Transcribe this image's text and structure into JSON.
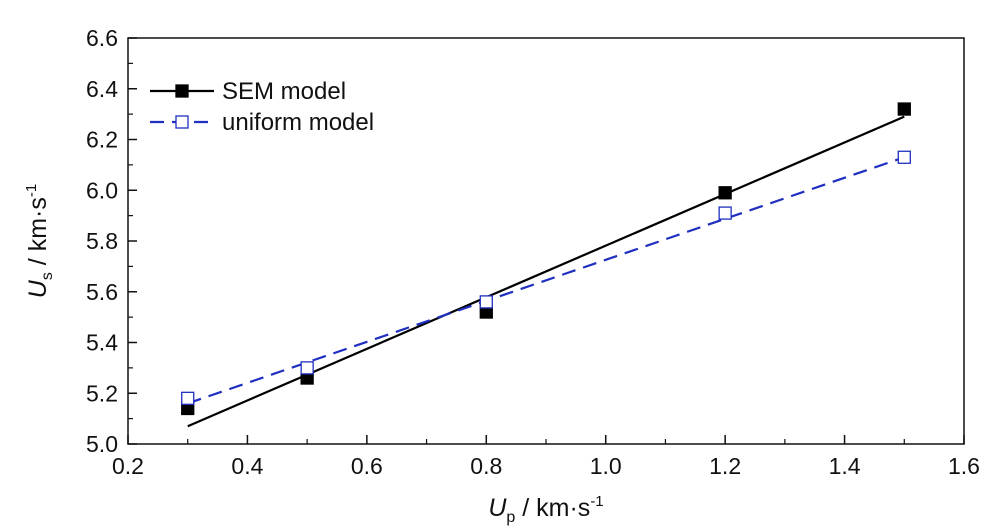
{
  "chart_data": {
    "type": "line",
    "xlabel": {
      "main": "U",
      "sub": "p",
      "unit": " / km·s",
      "sup": "-1"
    },
    "ylabel": {
      "main": "U",
      "sub": "s",
      "unit": " / km·s",
      "sup": "-1"
    },
    "xlim": [
      0.2,
      1.6
    ],
    "ylim": [
      5.0,
      6.6
    ],
    "xticks": [
      "0.2",
      "0.4",
      "0.6",
      "0.8",
      "1.0",
      "1.2",
      "1.4",
      "1.6"
    ],
    "yticks": [
      "5.0",
      "5.2",
      "5.4",
      "5.6",
      "5.8",
      "6.0",
      "6.2",
      "6.4",
      "6.6"
    ],
    "grid": false,
    "legend_position": "top-left",
    "series": [
      {
        "name": "SEM model",
        "color": "#000000",
        "marker": "filled-square",
        "line_style": "solid",
        "points": [
          [
            0.3,
            5.14
          ],
          [
            0.5,
            5.26
          ],
          [
            0.8,
            5.52
          ],
          [
            1.2,
            5.99
          ],
          [
            1.5,
            6.32
          ]
        ],
        "fit": [
          [
            0.3,
            5.07
          ],
          [
            1.5,
            6.29
          ]
        ]
      },
      {
        "name": "uniform model",
        "color": "#1f2fbf",
        "marker": "open-square",
        "line_style": "dashed",
        "points": [
          [
            0.3,
            5.18
          ],
          [
            0.5,
            5.3
          ],
          [
            0.8,
            5.56
          ],
          [
            1.2,
            5.91
          ],
          [
            1.5,
            6.13
          ]
        ],
        "fit": [
          [
            0.3,
            5.16
          ],
          [
            1.5,
            6.13
          ]
        ]
      }
    ]
  }
}
